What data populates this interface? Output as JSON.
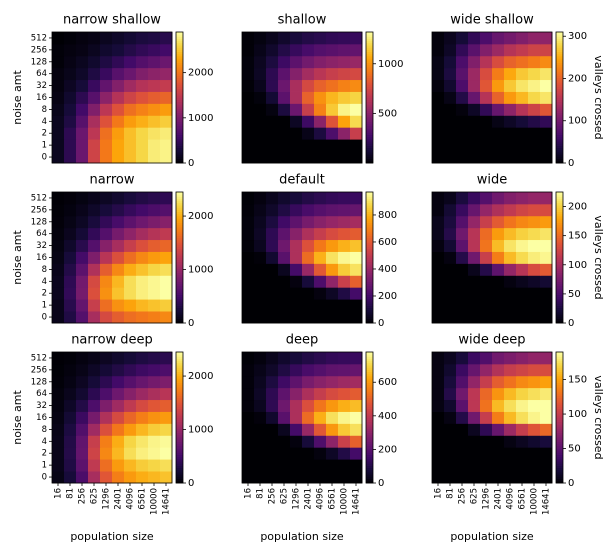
{
  "chart_data": [
    {
      "type": "heatmap",
      "title": "narrow shallow",
      "colormap": "inferno",
      "ylabel": "noise amt",
      "y": [
        0,
        1,
        2,
        4,
        8,
        16,
        32,
        64,
        128,
        256,
        512
      ],
      "zlim": [
        0,
        2900
      ],
      "zticks": [
        0,
        1000,
        2000
      ],
      "values": [
        [
          150,
          440,
          870,
          1600,
          2030,
          2320,
          2470,
          2610,
          2760,
          2810
        ],
        [
          150,
          440,
          870,
          1600,
          2030,
          2320,
          2470,
          2610,
          2760,
          2810
        ],
        [
          150,
          440,
          870,
          1450,
          1970,
          2260,
          2470,
          2610,
          2700,
          2760
        ],
        [
          150,
          350,
          730,
          1310,
          1740,
          2030,
          2260,
          2380,
          2470,
          2550
        ],
        [
          120,
          290,
          580,
          1020,
          1450,
          1740,
          1970,
          2090,
          2180,
          2260
        ],
        [
          90,
          230,
          440,
          730,
          1100,
          1390,
          1600,
          1740,
          1830,
          1890
        ],
        [
          60,
          170,
          290,
          520,
          810,
          1040,
          1250,
          1390,
          1450,
          1510
        ],
        [
          60,
          120,
          200,
          350,
          520,
          730,
          870,
          1020,
          1100,
          1160
        ],
        [
          30,
          90,
          150,
          230,
          350,
          460,
          580,
          700,
          780,
          870
        ],
        [
          30,
          60,
          90,
          150,
          230,
          290,
          380,
          460,
          520,
          580
        ],
        [
          0,
          30,
          60,
          90,
          150,
          200,
          260,
          320,
          350,
          410
        ]
      ]
    },
    {
      "type": "heatmap",
      "title": "shallow",
      "colormap": "inferno",
      "zlim": [
        0,
        1320
      ],
      "zticks": [
        500,
        1000
      ],
      "values": [
        [
          0,
          0,
          0,
          0,
          0,
          0,
          0,
          0,
          0,
          0
        ],
        [
          0,
          0,
          0,
          0,
          0,
          0,
          0,
          0,
          0,
          0
        ],
        [
          0,
          0,
          0,
          0,
          0,
          50,
          150,
          300,
          500,
          700
        ],
        [
          0,
          0,
          0,
          0,
          80,
          250,
          500,
          800,
          1050,
          1200
        ],
        [
          0,
          0,
          30,
          150,
          400,
          700,
          950,
          1150,
          1280,
          1320
        ],
        [
          0,
          20,
          120,
          350,
          600,
          850,
          1000,
          1100,
          1150,
          1180
        ],
        [
          10,
          60,
          200,
          400,
          600,
          750,
          850,
          900,
          950,
          980
        ],
        [
          20,
          80,
          200,
          350,
          480,
          580,
          650,
          700,
          730,
          750
        ],
        [
          20,
          70,
          150,
          250,
          350,
          420,
          470,
          500,
          520,
          540
        ],
        [
          10,
          50,
          100,
          170,
          230,
          280,
          320,
          340,
          360,
          370
        ],
        [
          10,
          30,
          60,
          100,
          140,
          170,
          190,
          210,
          220,
          230
        ]
      ]
    },
    {
      "type": "heatmap",
      "title": "wide shallow",
      "colormap": "inferno",
      "colorbar_label": "valleys crossed",
      "zlim": [
        0,
        310
      ],
      "zticks": [
        0,
        100,
        200,
        300
      ],
      "values": [
        [
          0,
          0,
          0,
          0,
          0,
          0,
          0,
          0,
          0,
          0
        ],
        [
          0,
          0,
          0,
          0,
          0,
          0,
          0,
          0,
          0,
          0
        ],
        [
          0,
          0,
          0,
          0,
          0,
          0,
          0,
          0,
          0,
          0
        ],
        [
          0,
          0,
          0,
          0,
          0,
          10,
          20,
          30,
          40,
          50
        ],
        [
          0,
          0,
          5,
          20,
          50,
          90,
          120,
          150,
          170,
          190
        ],
        [
          0,
          10,
          40,
          90,
          150,
          200,
          240,
          260,
          280,
          290
        ],
        [
          5,
          25,
          70,
          130,
          190,
          240,
          270,
          290,
          300,
          310
        ],
        [
          10,
          35,
          80,
          130,
          180,
          220,
          250,
          270,
          280,
          290
        ],
        [
          10,
          30,
          70,
          110,
          150,
          180,
          200,
          210,
          220,
          230
        ],
        [
          5,
          20,
          50,
          80,
          110,
          130,
          150,
          160,
          170,
          170
        ],
        [
          5,
          15,
          30,
          50,
          70,
          90,
          100,
          110,
          120,
          120
        ]
      ]
    },
    {
      "type": "heatmap",
      "title": "narrow",
      "colormap": "inferno",
      "ylabel": "noise amt",
      "y": [
        0,
        1,
        2,
        4,
        8,
        16,
        32,
        64,
        128,
        256,
        512
      ],
      "zlim": [
        0,
        2450
      ],
      "zticks": [
        0,
        1000,
        2000
      ],
      "values": [
        [
          100,
          300,
          600,
          1100,
          1400,
          1550,
          1650,
          1700,
          1750,
          1800
        ],
        [
          100,
          350,
          700,
          1300,
          1650,
          1850,
          1950,
          2050,
          2100,
          2150
        ],
        [
          120,
          400,
          800,
          1450,
          1850,
          2100,
          2250,
          2350,
          2400,
          2450
        ],
        [
          120,
          380,
          780,
          1400,
          1800,
          2050,
          2250,
          2350,
          2400,
          2450
        ],
        [
          100,
          320,
          650,
          1150,
          1550,
          1800,
          2000,
          2100,
          2200,
          2250
        ],
        [
          80,
          250,
          500,
          850,
          1200,
          1450,
          1650,
          1800,
          1900,
          1950
        ],
        [
          60,
          180,
          350,
          600,
          900,
          1100,
          1300,
          1450,
          1550,
          1600
        ],
        [
          40,
          120,
          230,
          400,
          600,
          800,
          950,
          1080,
          1180,
          1250
        ],
        [
          30,
          80,
          150,
          260,
          400,
          520,
          650,
          750,
          830,
          900
        ],
        [
          20,
          50,
          100,
          170,
          250,
          330,
          420,
          490,
          550,
          600
        ],
        [
          10,
          30,
          60,
          100,
          150,
          200,
          260,
          310,
          350,
          380
        ]
      ]
    },
    {
      "type": "heatmap",
      "title": "default",
      "colormap": "inferno",
      "zlim": [
        0,
        970
      ],
      "zticks": [
        0,
        200,
        400,
        600,
        800
      ],
      "values": [
        [
          0,
          0,
          0,
          0,
          0,
          0,
          0,
          0,
          0,
          0
        ],
        [
          0,
          0,
          0,
          0,
          0,
          0,
          0,
          0,
          0,
          0
        ],
        [
          0,
          0,
          0,
          0,
          0,
          0,
          20,
          60,
          120,
          200
        ],
        [
          0,
          0,
          0,
          0,
          20,
          100,
          220,
          380,
          520,
          620
        ],
        [
          0,
          0,
          0,
          50,
          200,
          400,
          600,
          750,
          850,
          900
        ],
        [
          0,
          10,
          80,
          250,
          450,
          650,
          800,
          900,
          950,
          970
        ],
        [
          10,
          50,
          150,
          300,
          450,
          580,
          680,
          750,
          800,
          830
        ],
        [
          15,
          60,
          150,
          260,
          360,
          450,
          510,
          560,
          590,
          610
        ],
        [
          15,
          50,
          110,
          190,
          260,
          320,
          360,
          390,
          410,
          430
        ],
        [
          10,
          35,
          70,
          120,
          170,
          210,
          240,
          260,
          270,
          280
        ],
        [
          5,
          20,
          45,
          75,
          100,
          125,
          145,
          160,
          170,
          175
        ]
      ]
    },
    {
      "type": "heatmap",
      "title": "wide",
      "colormap": "inferno",
      "colorbar_label": "valleys crossed",
      "zlim": [
        0,
        225
      ],
      "zticks": [
        0,
        50,
        100,
        150,
        200
      ],
      "values": [
        [
          0,
          0,
          0,
          0,
          0,
          0,
          0,
          0,
          0,
          0
        ],
        [
          0,
          0,
          0,
          0,
          0,
          0,
          0,
          0,
          0,
          0
        ],
        [
          0,
          0,
          0,
          0,
          0,
          0,
          0,
          0,
          0,
          0
        ],
        [
          0,
          0,
          0,
          0,
          0,
          0,
          5,
          10,
          15,
          20
        ],
        [
          0,
          0,
          0,
          10,
          30,
          60,
          90,
          110,
          130,
          140
        ],
        [
          0,
          5,
          30,
          70,
          120,
          160,
          190,
          205,
          215,
          220
        ],
        [
          5,
          20,
          60,
          110,
          155,
          190,
          210,
          220,
          225,
          225
        ],
        [
          10,
          30,
          70,
          110,
          150,
          175,
          190,
          200,
          205,
          210
        ],
        [
          10,
          25,
          55,
          90,
          120,
          140,
          155,
          165,
          170,
          175
        ],
        [
          5,
          20,
          40,
          65,
          90,
          105,
          115,
          125,
          130,
          130
        ],
        [
          5,
          10,
          25,
          40,
          55,
          70,
          80,
          85,
          90,
          90
        ]
      ]
    },
    {
      "type": "heatmap",
      "title": "narrow deep",
      "colormap": "inferno",
      "ylabel": "noise amt",
      "xlabel": "population size",
      "x": [
        16,
        81,
        256,
        625,
        1296,
        2401,
        4096,
        6561,
        10000,
        14641
      ],
      "y": [
        0,
        1,
        2,
        4,
        8,
        16,
        32,
        64,
        128,
        256,
        512
      ],
      "zlim": [
        0,
        2450
      ],
      "zticks": [
        0,
        1000,
        2000
      ],
      "values": [
        [
          80,
          250,
          550,
          1100,
          1500,
          1750,
          1900,
          2000,
          2050,
          2100
        ],
        [
          100,
          300,
          650,
          1250,
          1650,
          1900,
          2050,
          2150,
          2200,
          2250
        ],
        [
          100,
          330,
          700,
          1350,
          1800,
          2050,
          2250,
          2350,
          2400,
          2450
        ],
        [
          100,
          320,
          680,
          1300,
          1750,
          2000,
          2200,
          2300,
          2380,
          2420
        ],
        [
          90,
          280,
          580,
          1050,
          1450,
          1700,
          1900,
          2050,
          2150,
          2200
        ],
        [
          70,
          220,
          450,
          800,
          1150,
          1400,
          1600,
          1750,
          1850,
          1900
        ],
        [
          50,
          160,
          320,
          560,
          850,
          1050,
          1250,
          1400,
          1500,
          1550
        ],
        [
          40,
          110,
          210,
          370,
          560,
          750,
          900,
          1030,
          1120,
          1200
        ],
        [
          25,
          70,
          140,
          240,
          370,
          490,
          610,
          710,
          790,
          850
        ],
        [
          15,
          45,
          90,
          155,
          230,
          310,
          390,
          460,
          510,
          560
        ],
        [
          10,
          25,
          55,
          90,
          140,
          190,
          240,
          290,
          330,
          360
        ]
      ]
    },
    {
      "type": "heatmap",
      "title": "deep",
      "colormap": "inferno",
      "xlabel": "population size",
      "x": [
        16,
        81,
        256,
        625,
        1296,
        2401,
        4096,
        6561,
        10000,
        14641
      ],
      "zlim": [
        0,
        780
      ],
      "zticks": [
        0,
        200,
        400,
        600
      ],
      "values": [
        [
          0,
          0,
          0,
          0,
          0,
          0,
          0,
          0,
          0,
          0
        ],
        [
          0,
          0,
          0,
          0,
          0,
          0,
          0,
          0,
          0,
          0
        ],
        [
          0,
          0,
          0,
          0,
          0,
          0,
          15,
          50,
          100,
          160
        ],
        [
          0,
          0,
          0,
          0,
          15,
          80,
          180,
          300,
          420,
          500
        ],
        [
          0,
          0,
          0,
          40,
          160,
          320,
          480,
          600,
          680,
          720
        ],
        [
          0,
          10,
          60,
          200,
          360,
          520,
          640,
          720,
          760,
          780
        ],
        [
          10,
          40,
          120,
          240,
          360,
          460,
          540,
          600,
          640,
          660
        ],
        [
          10,
          50,
          120,
          210,
          290,
          360,
          410,
          450,
          470,
          490
        ],
        [
          10,
          40,
          90,
          150,
          210,
          260,
          290,
          310,
          330,
          340
        ],
        [
          10,
          30,
          55,
          95,
          135,
          170,
          190,
          210,
          215,
          225
        ],
        [
          5,
          15,
          35,
          60,
          80,
          100,
          115,
          130,
          135,
          140
        ]
      ]
    },
    {
      "type": "heatmap",
      "title": "wide deep",
      "colormap": "inferno",
      "colorbar_label": "valleys crossed",
      "xlabel": "population size",
      "x": [
        16,
        81,
        256,
        625,
        1296,
        2401,
        4096,
        6561,
        10000,
        14641
      ],
      "zlim": [
        0,
        190
      ],
      "zticks": [
        0,
        50,
        100,
        150
      ],
      "values": [
        [
          0,
          0,
          0,
          0,
          0,
          0,
          0,
          0,
          0,
          0
        ],
        [
          0,
          0,
          0,
          0,
          0,
          0,
          0,
          0,
          0,
          0
        ],
        [
          0,
          0,
          0,
          0,
          0,
          0,
          0,
          0,
          0,
          0
        ],
        [
          0,
          0,
          0,
          0,
          0,
          0,
          5,
          10,
          15,
          20
        ],
        [
          0,
          0,
          0,
          10,
          30,
          55,
          80,
          100,
          115,
          125
        ],
        [
          0,
          5,
          25,
          60,
          100,
          135,
          160,
          175,
          185,
          190
        ],
        [
          5,
          15,
          50,
          95,
          130,
          160,
          175,
          185,
          190,
          190
        ],
        [
          5,
          25,
          60,
          95,
          125,
          145,
          160,
          170,
          175,
          180
        ],
        [
          5,
          20,
          45,
          75,
          100,
          120,
          130,
          140,
          145,
          150
        ],
        [
          5,
          15,
          35,
          55,
          75,
          90,
          100,
          105,
          110,
          110
        ],
        [
          5,
          10,
          20,
          35,
          45,
          60,
          65,
          70,
          75,
          75
        ]
      ]
    }
  ]
}
